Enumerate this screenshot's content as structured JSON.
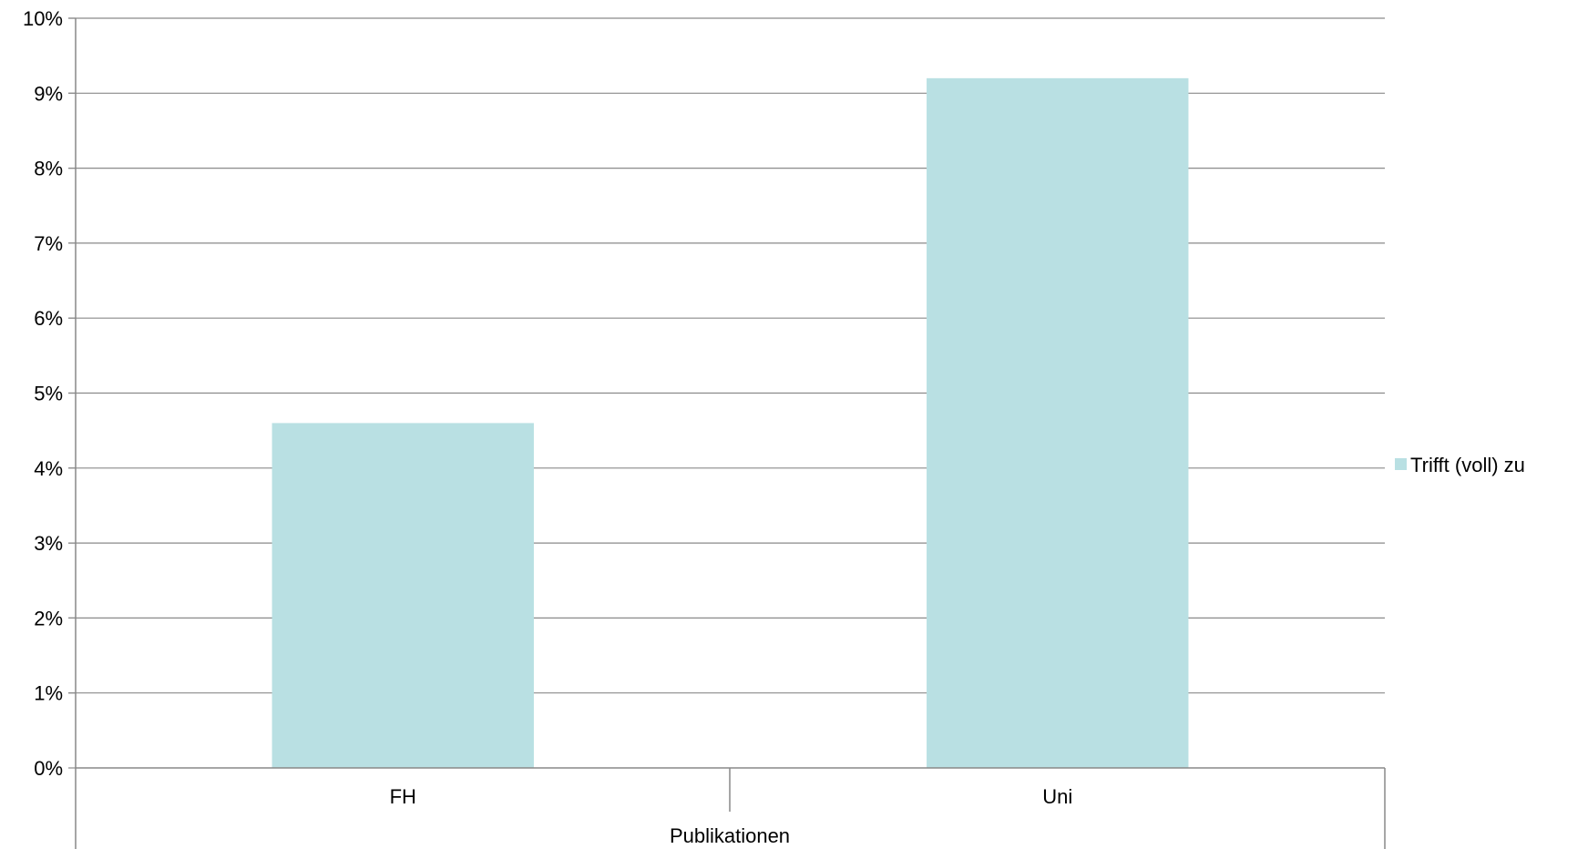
{
  "chart_data": {
    "type": "bar",
    "categories": [
      "FH",
      "Uni"
    ],
    "group_label": "Publikationen",
    "series": [
      {
        "name": "Trifft (voll) zu",
        "values": [
          4.6,
          9.2
        ]
      }
    ],
    "y_ticks": [
      "0%",
      "1%",
      "2%",
      "3%",
      "4%",
      "5%",
      "6%",
      "7%",
      "8%",
      "9%",
      "10%"
    ],
    "ylim": [
      0,
      10
    ],
    "grid": true,
    "legend_position": "right",
    "bar_color": "#b9e0e3"
  }
}
